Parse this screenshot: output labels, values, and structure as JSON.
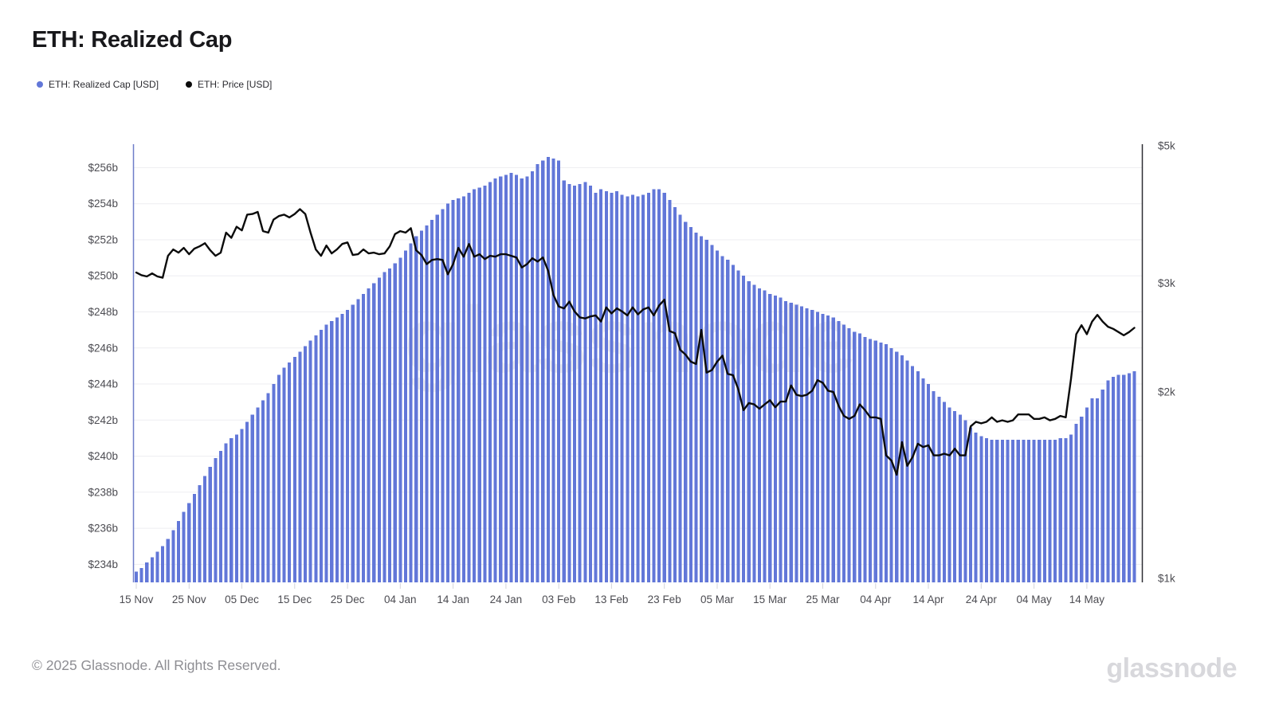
{
  "header": {
    "title": "ETH: Realized Cap"
  },
  "legend": {
    "items": [
      {
        "label": "ETH: Realized Cap [USD]",
        "color": "#6277d8"
      },
      {
        "label": "ETH: Price [USD]",
        "color": "#0b0b0b"
      }
    ]
  },
  "watermark": "glassnode",
  "footer": {
    "copyright": "© 2025 Glassnode. All Rights Reserved.",
    "logo": "glassnode"
  },
  "chart_data": {
    "type": "bar+line",
    "title": "ETH: Realized Cap",
    "start_date": "2024-11-15",
    "end_date": "2025-05-23",
    "n_days": 190,
    "grid": "horizontal",
    "left_axis": {
      "name": "ETH: Realized Cap [USD]",
      "scale": "linear",
      "unit": "billions USD",
      "range": [
        233.0,
        257.3
      ],
      "tick_values": [
        256,
        254,
        252,
        250,
        248,
        246,
        244,
        242,
        240,
        238,
        236,
        234
      ],
      "tick_labels": [
        "$256b",
        "$254b",
        "$252b",
        "$250b",
        "$248b",
        "$246b",
        "$244b",
        "$242b",
        "$240b",
        "$238b",
        "$236b",
        "$234b"
      ]
    },
    "right_axis": {
      "name": "ETH: Price [USD]",
      "scale": "log",
      "unit": "USD",
      "range": [
        985,
        5030
      ],
      "tick_values": [
        5000,
        3000,
        2000,
        1000
      ],
      "tick_labels": [
        "$5k",
        "$3k",
        "$2k",
        "$1k"
      ]
    },
    "x_axis": {
      "tick_labels": [
        "15 Nov",
        "25 Nov",
        "05 Dec",
        "15 Dec",
        "25 Dec",
        "04 Jan",
        "14 Jan",
        "24 Jan",
        "03 Feb",
        "13 Feb",
        "23 Feb",
        "05 Mar",
        "15 Mar",
        "25 Mar",
        "04 Apr",
        "14 Apr",
        "24 Apr",
        "04 May",
        "14 May"
      ],
      "tick_day_offsets": [
        0,
        10,
        20,
        30,
        40,
        50,
        60,
        70,
        80,
        90,
        100,
        110,
        120,
        130,
        140,
        150,
        160,
        170,
        180
      ]
    },
    "series": [
      {
        "name": "ETH: Realized Cap [USD]",
        "type": "bar",
        "axis": "left",
        "color": "#6277d8",
        "unit": "billion USD",
        "values": [
          233.6,
          233.8,
          234.1,
          234.4,
          234.7,
          235.0,
          235.4,
          235.9,
          236.4,
          236.9,
          237.4,
          237.9,
          238.4,
          238.9,
          239.4,
          239.9,
          240.3,
          240.7,
          241.0,
          241.2,
          241.5,
          241.9,
          242.3,
          242.7,
          243.1,
          243.5,
          244.0,
          244.5,
          244.9,
          245.2,
          245.5,
          245.8,
          246.1,
          246.4,
          246.7,
          247.0,
          247.3,
          247.5,
          247.7,
          247.9,
          248.1,
          248.4,
          248.7,
          249.0,
          249.3,
          249.6,
          249.9,
          250.2,
          250.4,
          250.7,
          251.0,
          251.4,
          251.8,
          252.2,
          252.5,
          252.8,
          253.1,
          253.4,
          253.7,
          254.0,
          254.2,
          254.3,
          254.4,
          254.6,
          254.8,
          254.9,
          255.0,
          255.2,
          255.4,
          255.5,
          255.6,
          255.7,
          255.6,
          255.4,
          255.5,
          255.8,
          256.2,
          256.4,
          256.6,
          256.5,
          256.4,
          255.3,
          255.1,
          255.0,
          255.1,
          255.2,
          255.0,
          254.6,
          254.8,
          254.7,
          254.6,
          254.7,
          254.5,
          254.4,
          254.5,
          254.4,
          254.5,
          254.6,
          254.8,
          254.8,
          254.6,
          254.2,
          253.8,
          253.4,
          253.0,
          252.7,
          252.4,
          252.2,
          252.0,
          251.7,
          251.4,
          251.1,
          250.9,
          250.6,
          250.3,
          250.0,
          249.7,
          249.5,
          249.3,
          249.2,
          249.0,
          248.9,
          248.8,
          248.6,
          248.5,
          248.4,
          248.3,
          248.2,
          248.1,
          248.0,
          247.9,
          247.8,
          247.7,
          247.5,
          247.3,
          247.1,
          246.9,
          246.8,
          246.6,
          246.5,
          246.4,
          246.3,
          246.2,
          246.0,
          245.8,
          245.6,
          245.3,
          245.0,
          244.7,
          244.3,
          244.0,
          243.6,
          243.3,
          243.0,
          242.7,
          242.5,
          242.3,
          242.0,
          241.6,
          241.3,
          241.1,
          241.0,
          240.9,
          240.9,
          240.9,
          240.9,
          240.9,
          240.9,
          240.9,
          240.9,
          240.9,
          240.9,
          240.9,
          240.9,
          240.9,
          241.0,
          241.0,
          241.2,
          241.8,
          242.2,
          242.7,
          243.2,
          243.2,
          243.7,
          244.2,
          244.4,
          244.5,
          244.5,
          244.6,
          244.7
        ]
      },
      {
        "name": "ETH: Price [USD]",
        "type": "line",
        "axis": "right",
        "color": "#0b0b0b",
        "unit": "USD",
        "values": [
          3120,
          3090,
          3075,
          3110,
          3075,
          3060,
          3320,
          3400,
          3360,
          3420,
          3340,
          3410,
          3440,
          3480,
          3390,
          3320,
          3360,
          3620,
          3550,
          3700,
          3650,
          3870,
          3880,
          3910,
          3640,
          3620,
          3800,
          3850,
          3870,
          3830,
          3880,
          3950,
          3880,
          3620,
          3400,
          3320,
          3450,
          3350,
          3400,
          3470,
          3490,
          3330,
          3340,
          3400,
          3350,
          3360,
          3340,
          3350,
          3440,
          3600,
          3640,
          3620,
          3680,
          3390,
          3330,
          3220,
          3270,
          3280,
          3270,
          3100,
          3220,
          3420,
          3310,
          3470,
          3310,
          3340,
          3280,
          3320,
          3310,
          3340,
          3340,
          3320,
          3300,
          3180,
          3220,
          3290,
          3250,
          3300,
          3140,
          2870,
          2750,
          2730,
          2800,
          2700,
          2640,
          2630,
          2650,
          2660,
          2600,
          2740,
          2680,
          2730,
          2700,
          2660,
          2740,
          2670,
          2720,
          2740,
          2660,
          2760,
          2820,
          2510,
          2490,
          2340,
          2300,
          2240,
          2220,
          2520,
          2150,
          2170,
          2240,
          2290,
          2140,
          2130,
          2020,
          1870,
          1920,
          1910,
          1880,
          1910,
          1940,
          1890,
          1930,
          1930,
          2050,
          1980,
          1970,
          1980,
          2010,
          2090,
          2070,
          2010,
          2000,
          1900,
          1830,
          1810,
          1830,
          1910,
          1870,
          1820,
          1820,
          1810,
          1580,
          1550,
          1470,
          1660,
          1520,
          1570,
          1650,
          1630,
          1640,
          1580,
          1580,
          1590,
          1580,
          1620,
          1580,
          1580,
          1760,
          1790,
          1780,
          1790,
          1820,
          1790,
          1800,
          1790,
          1800,
          1840,
          1840,
          1840,
          1810,
          1810,
          1820,
          1800,
          1810,
          1830,
          1820,
          2100,
          2480,
          2565,
          2480,
          2600,
          2665,
          2600,
          2550,
          2530,
          2500,
          2470,
          2500,
          2540
        ]
      }
    ]
  }
}
